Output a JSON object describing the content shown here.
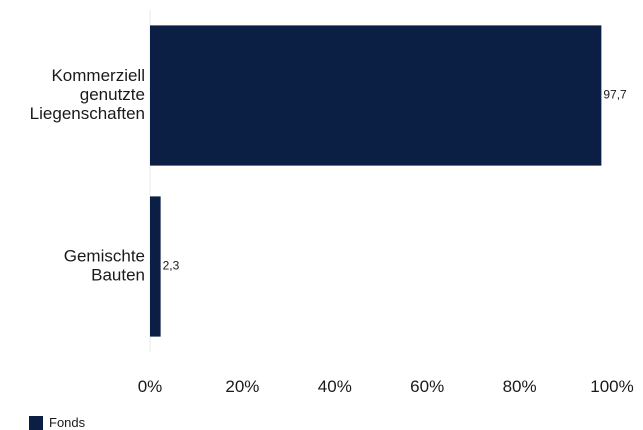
{
  "chart_data": {
    "type": "bar",
    "orientation": "horizontal",
    "categories": [
      [
        "Kommerziell",
        "genutzte",
        "Liegenschaften"
      ],
      [
        "Gemischte",
        "Bauten"
      ]
    ],
    "series": [
      {
        "name": "Fonds",
        "values": [
          97.7,
          2.3
        ],
        "value_labels": [
          "97,7",
          "2,3"
        ],
        "color": "#0b1f45"
      }
    ],
    "x_ticks": [
      "0%",
      "20%",
      "40%",
      "60%",
      "80%",
      "100%"
    ],
    "x_tick_values": [
      0,
      20,
      40,
      60,
      80,
      100
    ],
    "xlim": [
      0,
      100
    ],
    "legend_position": "bottom-left",
    "grid": false
  },
  "legend": {
    "label": "Fonds"
  }
}
